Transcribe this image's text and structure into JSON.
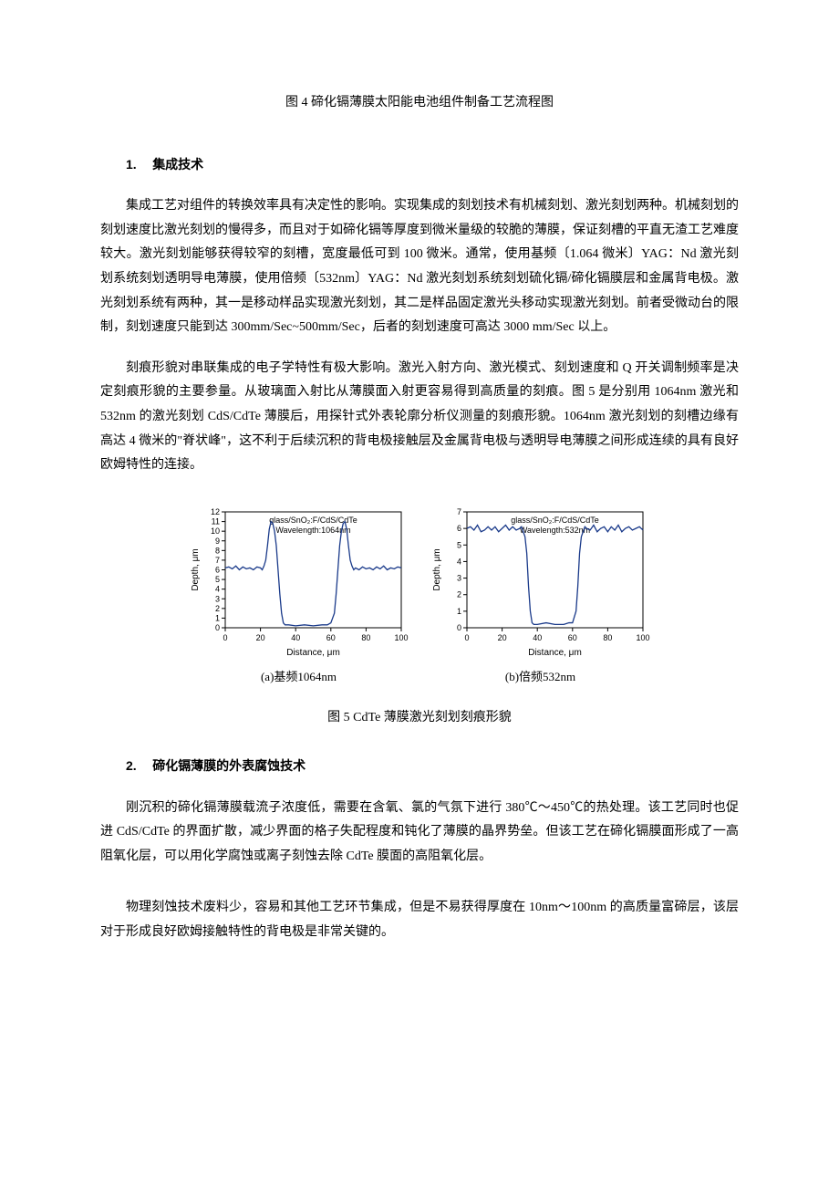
{
  "fig4_caption": "图 4 碲化镉薄膜太阳能电池组件制备工艺流程图",
  "section1": {
    "num": "1.",
    "title": "集成技术",
    "para1": "集成工艺对组件的转换效率具有决定性的影响。实现集成的刻划技术有机械刻划、激光刻划两种。机械刻划的刻划速度比激光刻划的慢得多，而且对于如碲化镉等厚度到微米量级的较脆的薄膜，保证刻槽的平直无渣工艺难度较大。激光刻划能够获得较窄的刻槽，宽度最低可到 100 微米。通常，使用基频〔1.064 微米〕YAG：Nd 激光刻划系统刻划透明导电薄膜，使用倍频〔532nm〕YAG：Nd 激光刻划系统刻划硫化镉/碲化镉膜层和金属背电极。激光刻划系统有两种，其一是移动样品实现激光刻划，其二是样品固定激光头移动实现激光刻划。前者受微动台的限制，刻划速度只能到达 300mm/Sec~500mm/Sec，后者的刻划速度可高达 3000 mm/Sec 以上。",
    "para2": "刻痕形貌对串联集成的电子学特性有极大影响。激光入射方向、激光模式、刻划速度和 Q 开关调制频率是决定刻痕形貌的主要参量。从玻璃面入射比从薄膜面入射更容易得到高质量的刻痕。图 5 是分别用 1064nm 激光和 532nm 的激光刻划 CdS/CdTe 薄膜后，用探针式外表轮廓分析仪测量的刻痕形貌。1064nm 激光刻划的刻槽边缘有高达 4 微米的\"脊状峰\"，这不利于后续沉积的背电极接触层及金属背电极与透明导电薄膜之间形成连续的具有良好欧姆特性的连接。"
  },
  "chart_a": {
    "type": "line",
    "title_lines": [
      "glass/SnO₂:F/CdS/CdTe",
      "Wavelength:1064nm"
    ],
    "xlabel": "Distance, μm",
    "ylabel": "Depth, μm",
    "xlim": [
      0,
      100
    ],
    "ylim": [
      0,
      12
    ],
    "xticks": [
      0,
      20,
      40,
      60,
      80,
      100
    ],
    "yticks": [
      0,
      1,
      2,
      3,
      4,
      5,
      6,
      7,
      8,
      9,
      10,
      11,
      12
    ],
    "caption": "(a)基频1064nm",
    "line_color": "#1a3a8a",
    "axis_color": "#000000",
    "tick_fontsize": 9,
    "label_fontsize": 10,
    "title_fontsize": 9,
    "data_points": [
      [
        0,
        6.2
      ],
      [
        2,
        6.3
      ],
      [
        4,
        6.1
      ],
      [
        6,
        6.4
      ],
      [
        8,
        6.0
      ],
      [
        10,
        6.3
      ],
      [
        12,
        6.1
      ],
      [
        14,
        6.2
      ],
      [
        16,
        6.0
      ],
      [
        18,
        6.3
      ],
      [
        20,
        6.2
      ],
      [
        21,
        6.0
      ],
      [
        22,
        6.4
      ],
      [
        23,
        7.0
      ],
      [
        24,
        8.5
      ],
      [
        25,
        10.2
      ],
      [
        26,
        11.0
      ],
      [
        27,
        10.8
      ],
      [
        28,
        10.0
      ],
      [
        29,
        8.5
      ],
      [
        30,
        6.0
      ],
      [
        31,
        3.5
      ],
      [
        32,
        1.5
      ],
      [
        33,
        0.5
      ],
      [
        34,
        0.3
      ],
      [
        36,
        0.3
      ],
      [
        40,
        0.2
      ],
      [
        45,
        0.3
      ],
      [
        50,
        0.2
      ],
      [
        55,
        0.3
      ],
      [
        58,
        0.3
      ],
      [
        60,
        0.5
      ],
      [
        62,
        1.5
      ],
      [
        63,
        3.5
      ],
      [
        64,
        6.0
      ],
      [
        65,
        8.5
      ],
      [
        66,
        10.0
      ],
      [
        67,
        10.8
      ],
      [
        68,
        11.0
      ],
      [
        69,
        10.2
      ],
      [
        70,
        8.5
      ],
      [
        71,
        7.0
      ],
      [
        72,
        6.4
      ],
      [
        73,
        6.0
      ],
      [
        74,
        6.2
      ],
      [
        76,
        6.0
      ],
      [
        78,
        6.3
      ],
      [
        80,
        6.1
      ],
      [
        82,
        6.2
      ],
      [
        84,
        6.0
      ],
      [
        86,
        6.3
      ],
      [
        88,
        6.1
      ],
      [
        90,
        6.4
      ],
      [
        92,
        6.0
      ],
      [
        94,
        6.2
      ],
      [
        96,
        6.1
      ],
      [
        98,
        6.3
      ],
      [
        100,
        6.2
      ]
    ]
  },
  "chart_b": {
    "type": "line",
    "title_lines": [
      "glass/SnO₂:F/CdS/CdTe",
      "Wavelength:532nm"
    ],
    "xlabel": "Distance, μm",
    "ylabel": "Depth, μm",
    "xlim": [
      0,
      100
    ],
    "ylim": [
      0,
      7
    ],
    "xticks": [
      0,
      20,
      40,
      60,
      80,
      100
    ],
    "yticks": [
      0,
      1,
      2,
      3,
      4,
      5,
      6,
      7
    ],
    "caption": "(b)倍频532nm",
    "line_color": "#1a3a8a",
    "axis_color": "#000000",
    "tick_fontsize": 9,
    "label_fontsize": 10,
    "title_fontsize": 9,
    "data_points": [
      [
        0,
        6.0
      ],
      [
        2,
        6.1
      ],
      [
        4,
        5.9
      ],
      [
        6,
        6.2
      ],
      [
        8,
        5.8
      ],
      [
        10,
        5.9
      ],
      [
        12,
        6.1
      ],
      [
        14,
        5.9
      ],
      [
        16,
        6.1
      ],
      [
        18,
        5.8
      ],
      [
        20,
        6.0
      ],
      [
        22,
        6.2
      ],
      [
        24,
        5.9
      ],
      [
        26,
        6.1
      ],
      [
        28,
        5.9
      ],
      [
        30,
        6.0
      ],
      [
        31,
        6.1
      ],
      [
        32,
        5.8
      ],
      [
        33,
        5.5
      ],
      [
        34,
        4.5
      ],
      [
        35,
        2.5
      ],
      [
        36,
        1.0
      ],
      [
        37,
        0.3
      ],
      [
        38,
        0.2
      ],
      [
        40,
        0.2
      ],
      [
        45,
        0.3
      ],
      [
        50,
        0.2
      ],
      [
        55,
        0.2
      ],
      [
        58,
        0.3
      ],
      [
        60,
        0.3
      ],
      [
        62,
        1.0
      ],
      [
        63,
        2.5
      ],
      [
        64,
        4.5
      ],
      [
        65,
        5.5
      ],
      [
        66,
        5.8
      ],
      [
        67,
        6.1
      ],
      [
        68,
        6.0
      ],
      [
        70,
        5.9
      ],
      [
        72,
        6.2
      ],
      [
        74,
        5.8
      ],
      [
        76,
        6.0
      ],
      [
        78,
        6.1
      ],
      [
        80,
        5.8
      ],
      [
        82,
        6.1
      ],
      [
        84,
        5.9
      ],
      [
        86,
        6.2
      ],
      [
        88,
        5.8
      ],
      [
        90,
        6.0
      ],
      [
        92,
        6.1
      ],
      [
        94,
        5.9
      ],
      [
        96,
        6.0
      ],
      [
        98,
        6.1
      ],
      [
        100,
        5.9
      ]
    ]
  },
  "fig5_caption": "图 5 CdTe 薄膜激光刻划刻痕形貌",
  "section2": {
    "num": "2.",
    "title": "碲化镉薄膜的外表腐蚀技术",
    "para1": "刚沉积的碲化镉薄膜载流子浓度低，需要在含氧、氯的气氛下进行 380℃～450℃的热处理。该工艺同时也促进 CdS/CdTe 的界面扩散，减少界面的格子失配程度和钝化了薄膜的晶界势垒。但该工艺在碲化镉膜面形成了一高阻氧化层，可以用化学腐蚀或离子刻蚀去除 CdTe 膜面的高阻氧化层。",
    "para2": "物理刻蚀技术废料少，容易和其他工艺环节集成，但是不易获得厚度在 10nm～100nm 的高质量富碲层，该层对于形成良好欧姆接触特性的背电极是非常关键的。"
  }
}
